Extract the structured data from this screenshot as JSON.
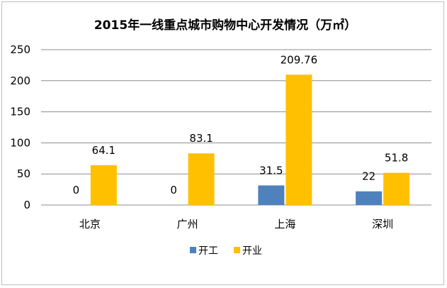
{
  "chart_data": {
    "type": "bar",
    "title": "2015年一线重点城市购物中心开发情况（万㎡）",
    "categories": [
      "北京",
      "广州",
      "上海",
      "深圳"
    ],
    "series": [
      {
        "name": "开工",
        "values": [
          0,
          0,
          31.5,
          22
        ],
        "labels": [
          "0",
          "0",
          "31.5",
          "22"
        ],
        "color": "#4f81bd"
      },
      {
        "name": "开业",
        "values": [
          64.1,
          83.1,
          209.76,
          51.8
        ],
        "labels": [
          "64.1",
          "83.1",
          "209.76",
          "51.8"
        ],
        "color": "#ffc000"
      }
    ],
    "ylim": [
      0,
      250
    ],
    "yticks": [
      0,
      50,
      100,
      150,
      200,
      250
    ],
    "grid": true,
    "legend": "bottom"
  }
}
